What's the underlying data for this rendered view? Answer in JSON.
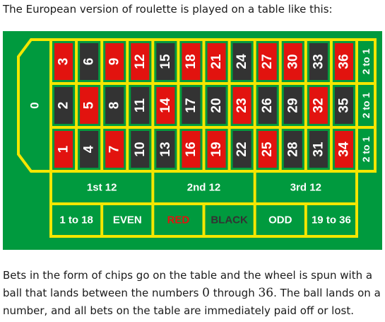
{
  "intro_text": "The European version of roulette is played on a table like this:",
  "colors": {
    "felt": "#009a3e",
    "line": "#f4e600",
    "red": "#e2130f",
    "black": "#333333",
    "green": "#009a3e"
  },
  "zero": "0",
  "numbers": [
    {
      "n": "3",
      "c": "red"
    },
    {
      "n": "2",
      "c": "black"
    },
    {
      "n": "1",
      "c": "red"
    },
    {
      "n": "6",
      "c": "black"
    },
    {
      "n": "5",
      "c": "red"
    },
    {
      "n": "4",
      "c": "black"
    },
    {
      "n": "9",
      "c": "red"
    },
    {
      "n": "8",
      "c": "black"
    },
    {
      "n": "7",
      "c": "red"
    },
    {
      "n": "12",
      "c": "red"
    },
    {
      "n": "11",
      "c": "black"
    },
    {
      "n": "10",
      "c": "black"
    },
    {
      "n": "15",
      "c": "black"
    },
    {
      "n": "14",
      "c": "red"
    },
    {
      "n": "13",
      "c": "black"
    },
    {
      "n": "18",
      "c": "red"
    },
    {
      "n": "17",
      "c": "black"
    },
    {
      "n": "16",
      "c": "red"
    },
    {
      "n": "21",
      "c": "red"
    },
    {
      "n": "20",
      "c": "black"
    },
    {
      "n": "19",
      "c": "red"
    },
    {
      "n": "24",
      "c": "black"
    },
    {
      "n": "23",
      "c": "red"
    },
    {
      "n": "22",
      "c": "black"
    },
    {
      "n": "27",
      "c": "red"
    },
    {
      "n": "26",
      "c": "black"
    },
    {
      "n": "25",
      "c": "red"
    },
    {
      "n": "30",
      "c": "red"
    },
    {
      "n": "29",
      "c": "black"
    },
    {
      "n": "28",
      "c": "black"
    },
    {
      "n": "33",
      "c": "black"
    },
    {
      "n": "32",
      "c": "red"
    },
    {
      "n": "31",
      "c": "black"
    },
    {
      "n": "36",
      "c": "red"
    },
    {
      "n": "35",
      "c": "black"
    },
    {
      "n": "34",
      "c": "red"
    }
  ],
  "columns": [
    "2 to 1",
    "2 to 1",
    "2 to 1"
  ],
  "dozens": [
    "1st 12",
    "2nd 12",
    "3rd 12"
  ],
  "outside_bets": [
    {
      "label": "1 to 18",
      "color": "#ffffff"
    },
    {
      "label": "EVEN",
      "color": "#ffffff"
    },
    {
      "label": "RED",
      "color": "#e2130f"
    },
    {
      "label": "BLACK",
      "color": "#333333"
    },
    {
      "label": "ODD",
      "color": "#ffffff"
    },
    {
      "label": "19 to 36",
      "color": "#ffffff"
    }
  ],
  "outro": {
    "part1": "Bets in the form of chips go on the table and the wheel is spun with a ball that lands between the numbers ",
    "low": "0",
    "part2": " through ",
    "high": "36",
    "part3": ". The ball lands on a number, and all bets on the table are immediately paid off or lost."
  }
}
